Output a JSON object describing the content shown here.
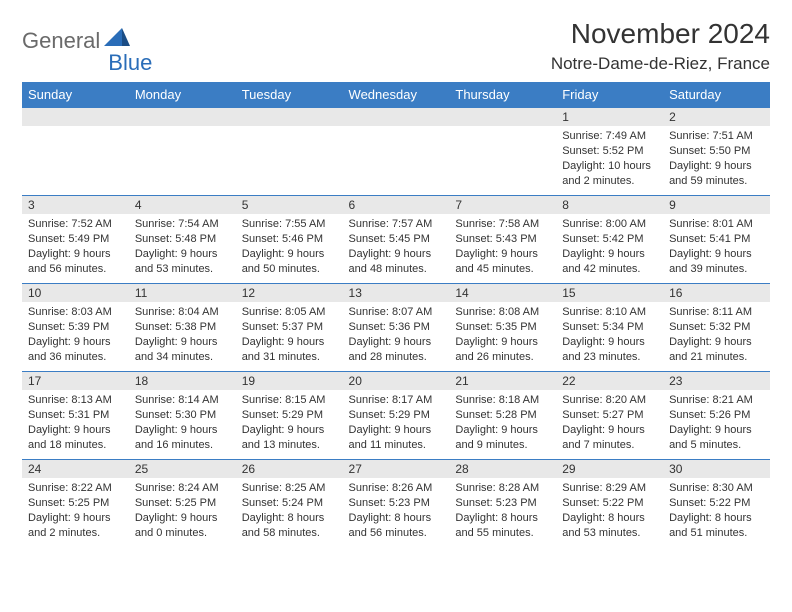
{
  "logo": {
    "part1": "General",
    "part2": "Blue"
  },
  "title": "November 2024",
  "location": "Notre-Dame-de-Riez, France",
  "colors": {
    "header_bg": "#3b7dc4",
    "header_text": "#ffffff",
    "daynum_bg": "#e8e8e8",
    "cell_border": "#3b7dc4",
    "text": "#333333",
    "logo_gray": "#6a6a6a",
    "logo_blue": "#2a6db8",
    "page_bg": "#ffffff"
  },
  "typography": {
    "title_fontsize": 28,
    "location_fontsize": 17,
    "dayheader_fontsize": 13,
    "daynum_fontsize": 12,
    "body_fontsize": 11
  },
  "day_headers": [
    "Sunday",
    "Monday",
    "Tuesday",
    "Wednesday",
    "Thursday",
    "Friday",
    "Saturday"
  ],
  "weeks": [
    [
      {
        "n": "",
        "sunrise": "",
        "sunset": "",
        "daylight": ""
      },
      {
        "n": "",
        "sunrise": "",
        "sunset": "",
        "daylight": ""
      },
      {
        "n": "",
        "sunrise": "",
        "sunset": "",
        "daylight": ""
      },
      {
        "n": "",
        "sunrise": "",
        "sunset": "",
        "daylight": ""
      },
      {
        "n": "",
        "sunrise": "",
        "sunset": "",
        "daylight": ""
      },
      {
        "n": "1",
        "sunrise": "Sunrise: 7:49 AM",
        "sunset": "Sunset: 5:52 PM",
        "daylight": "Daylight: 10 hours and 2 minutes."
      },
      {
        "n": "2",
        "sunrise": "Sunrise: 7:51 AM",
        "sunset": "Sunset: 5:50 PM",
        "daylight": "Daylight: 9 hours and 59 minutes."
      }
    ],
    [
      {
        "n": "3",
        "sunrise": "Sunrise: 7:52 AM",
        "sunset": "Sunset: 5:49 PM",
        "daylight": "Daylight: 9 hours and 56 minutes."
      },
      {
        "n": "4",
        "sunrise": "Sunrise: 7:54 AM",
        "sunset": "Sunset: 5:48 PM",
        "daylight": "Daylight: 9 hours and 53 minutes."
      },
      {
        "n": "5",
        "sunrise": "Sunrise: 7:55 AM",
        "sunset": "Sunset: 5:46 PM",
        "daylight": "Daylight: 9 hours and 50 minutes."
      },
      {
        "n": "6",
        "sunrise": "Sunrise: 7:57 AM",
        "sunset": "Sunset: 5:45 PM",
        "daylight": "Daylight: 9 hours and 48 minutes."
      },
      {
        "n": "7",
        "sunrise": "Sunrise: 7:58 AM",
        "sunset": "Sunset: 5:43 PM",
        "daylight": "Daylight: 9 hours and 45 minutes."
      },
      {
        "n": "8",
        "sunrise": "Sunrise: 8:00 AM",
        "sunset": "Sunset: 5:42 PM",
        "daylight": "Daylight: 9 hours and 42 minutes."
      },
      {
        "n": "9",
        "sunrise": "Sunrise: 8:01 AM",
        "sunset": "Sunset: 5:41 PM",
        "daylight": "Daylight: 9 hours and 39 minutes."
      }
    ],
    [
      {
        "n": "10",
        "sunrise": "Sunrise: 8:03 AM",
        "sunset": "Sunset: 5:39 PM",
        "daylight": "Daylight: 9 hours and 36 minutes."
      },
      {
        "n": "11",
        "sunrise": "Sunrise: 8:04 AM",
        "sunset": "Sunset: 5:38 PM",
        "daylight": "Daylight: 9 hours and 34 minutes."
      },
      {
        "n": "12",
        "sunrise": "Sunrise: 8:05 AM",
        "sunset": "Sunset: 5:37 PM",
        "daylight": "Daylight: 9 hours and 31 minutes."
      },
      {
        "n": "13",
        "sunrise": "Sunrise: 8:07 AM",
        "sunset": "Sunset: 5:36 PM",
        "daylight": "Daylight: 9 hours and 28 minutes."
      },
      {
        "n": "14",
        "sunrise": "Sunrise: 8:08 AM",
        "sunset": "Sunset: 5:35 PM",
        "daylight": "Daylight: 9 hours and 26 minutes."
      },
      {
        "n": "15",
        "sunrise": "Sunrise: 8:10 AM",
        "sunset": "Sunset: 5:34 PM",
        "daylight": "Daylight: 9 hours and 23 minutes."
      },
      {
        "n": "16",
        "sunrise": "Sunrise: 8:11 AM",
        "sunset": "Sunset: 5:32 PM",
        "daylight": "Daylight: 9 hours and 21 minutes."
      }
    ],
    [
      {
        "n": "17",
        "sunrise": "Sunrise: 8:13 AM",
        "sunset": "Sunset: 5:31 PM",
        "daylight": "Daylight: 9 hours and 18 minutes."
      },
      {
        "n": "18",
        "sunrise": "Sunrise: 8:14 AM",
        "sunset": "Sunset: 5:30 PM",
        "daylight": "Daylight: 9 hours and 16 minutes."
      },
      {
        "n": "19",
        "sunrise": "Sunrise: 8:15 AM",
        "sunset": "Sunset: 5:29 PM",
        "daylight": "Daylight: 9 hours and 13 minutes."
      },
      {
        "n": "20",
        "sunrise": "Sunrise: 8:17 AM",
        "sunset": "Sunset: 5:29 PM",
        "daylight": "Daylight: 9 hours and 11 minutes."
      },
      {
        "n": "21",
        "sunrise": "Sunrise: 8:18 AM",
        "sunset": "Sunset: 5:28 PM",
        "daylight": "Daylight: 9 hours and 9 minutes."
      },
      {
        "n": "22",
        "sunrise": "Sunrise: 8:20 AM",
        "sunset": "Sunset: 5:27 PM",
        "daylight": "Daylight: 9 hours and 7 minutes."
      },
      {
        "n": "23",
        "sunrise": "Sunrise: 8:21 AM",
        "sunset": "Sunset: 5:26 PM",
        "daylight": "Daylight: 9 hours and 5 minutes."
      }
    ],
    [
      {
        "n": "24",
        "sunrise": "Sunrise: 8:22 AM",
        "sunset": "Sunset: 5:25 PM",
        "daylight": "Daylight: 9 hours and 2 minutes."
      },
      {
        "n": "25",
        "sunrise": "Sunrise: 8:24 AM",
        "sunset": "Sunset: 5:25 PM",
        "daylight": "Daylight: 9 hours and 0 minutes."
      },
      {
        "n": "26",
        "sunrise": "Sunrise: 8:25 AM",
        "sunset": "Sunset: 5:24 PM",
        "daylight": "Daylight: 8 hours and 58 minutes."
      },
      {
        "n": "27",
        "sunrise": "Sunrise: 8:26 AM",
        "sunset": "Sunset: 5:23 PM",
        "daylight": "Daylight: 8 hours and 56 minutes."
      },
      {
        "n": "28",
        "sunrise": "Sunrise: 8:28 AM",
        "sunset": "Sunset: 5:23 PM",
        "daylight": "Daylight: 8 hours and 55 minutes."
      },
      {
        "n": "29",
        "sunrise": "Sunrise: 8:29 AM",
        "sunset": "Sunset: 5:22 PM",
        "daylight": "Daylight: 8 hours and 53 minutes."
      },
      {
        "n": "30",
        "sunrise": "Sunrise: 8:30 AM",
        "sunset": "Sunset: 5:22 PM",
        "daylight": "Daylight: 8 hours and 51 minutes."
      }
    ]
  ]
}
